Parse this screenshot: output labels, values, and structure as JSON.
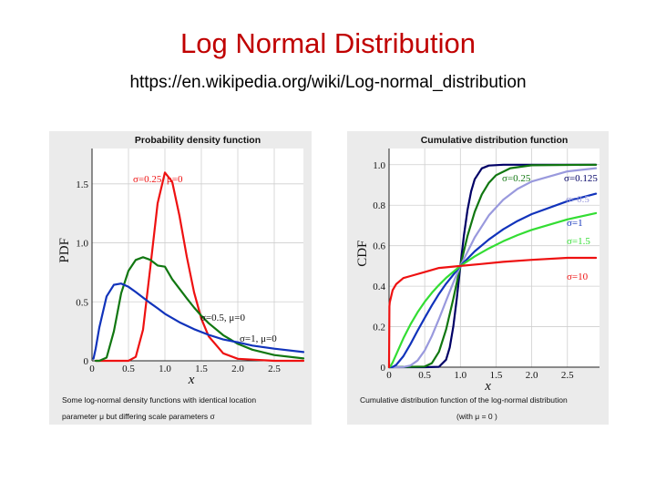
{
  "slide": {
    "title": "Log Normal Distribution",
    "subtitle": "https://en.wikipedia.org/wiki/Log-normal_distribution"
  },
  "chart_data": [
    {
      "type": "line",
      "title": "Probability density function",
      "xlabel": "x",
      "ylabel": "PDF",
      "xlim": [
        0,
        2.9
      ],
      "ylim": [
        0,
        1.8
      ],
      "xticks": [
        "0",
        "0.5",
        "1.0",
        "1.5",
        "2.0",
        "2.5"
      ],
      "yticks": [
        "0",
        "0.5",
        "1.0",
        "1.5"
      ],
      "grid": true,
      "caption_line1": "Some log-normal density functions with identical location",
      "caption_line2": "parameter μ but differing scale parameters σ",
      "series": [
        {
          "label": "σ=0.25, μ=0",
          "color": "#ee1111",
          "x": [
            0.05,
            0.1,
            0.2,
            0.3,
            0.4,
            0.5,
            0.6,
            0.7,
            0.8,
            0.9,
            1.0,
            1.1,
            1.2,
            1.3,
            1.4,
            1.5,
            1.6,
            1.8,
            2.0,
            2.5,
            2.9
          ],
          "y": [
            0.0,
            0.0,
            0.0,
            0.0,
            0.0,
            0.0,
            0.033,
            0.264,
            0.793,
            1.336,
            1.596,
            1.518,
            1.228,
            0.883,
            0.581,
            0.357,
            0.208,
            0.063,
            0.017,
            0.0,
            0.0
          ]
        },
        {
          "label": "σ=0.5, μ=0",
          "color": "#117711",
          "x": [
            0.05,
            0.1,
            0.2,
            0.3,
            0.4,
            0.5,
            0.6,
            0.7,
            0.8,
            0.9,
            1.0,
            1.1,
            1.2,
            1.3,
            1.4,
            1.5,
            1.6,
            1.8,
            2.0,
            2.2,
            2.5,
            2.9
          ],
          "y": [
            0.0,
            0.0,
            0.027,
            0.25,
            0.573,
            0.763,
            0.855,
            0.878,
            0.856,
            0.808,
            0.798,
            0.692,
            0.611,
            0.53,
            0.452,
            0.382,
            0.319,
            0.217,
            0.144,
            0.094,
            0.049,
            0.02
          ]
        },
        {
          "label": "σ=1, μ=0",
          "color": "#1133bb",
          "x": [
            0.02,
            0.05,
            0.1,
            0.2,
            0.3,
            0.4,
            0.5,
            0.6,
            0.7,
            0.8,
            0.9,
            1.0,
            1.2,
            1.4,
            1.6,
            1.8,
            2.0,
            2.2,
            2.5,
            2.9
          ],
          "y": [
            0.018,
            0.103,
            0.282,
            0.546,
            0.644,
            0.655,
            0.627,
            0.583,
            0.536,
            0.489,
            0.445,
            0.399,
            0.327,
            0.268,
            0.22,
            0.181,
            0.157,
            0.129,
            0.103,
            0.074
          ]
        }
      ]
    },
    {
      "type": "line",
      "title": "Cumulative distribution function",
      "xlabel": "x",
      "ylabel": "CDF",
      "xlim": [
        0,
        2.95
      ],
      "ylim": [
        0,
        1.08
      ],
      "xticks": [
        "0",
        "0.5",
        "1.0",
        "1.5",
        "2.0",
        "2.5"
      ],
      "yticks": [
        "0",
        "0.2",
        "0.4",
        "0.6",
        "0.8",
        "1.0"
      ],
      "grid": true,
      "caption_line1": "Cumulative distribution function of the log-normal distribution",
      "caption_line2": "(with μ = 0 )",
      "series": [
        {
          "label": "σ=0.125",
          "color": "#000066",
          "x": [
            0.0,
            0.5,
            0.7,
            0.8,
            0.85,
            0.9,
            0.95,
            1.0,
            1.05,
            1.1,
            1.15,
            1.2,
            1.3,
            1.4,
            1.6,
            2.0,
            2.9
          ],
          "y": [
            0.0,
            0.0,
            0.002,
            0.037,
            0.097,
            0.2,
            0.34,
            0.5,
            0.651,
            0.776,
            0.868,
            0.928,
            0.982,
            0.996,
            1.0,
            1.0,
            1.0
          ]
        },
        {
          "label": "σ=0.25",
          "color": "#117711",
          "x": [
            0.0,
            0.5,
            0.6,
            0.7,
            0.8,
            0.9,
            1.0,
            1.1,
            1.2,
            1.3,
            1.4,
            1.5,
            1.7,
            2.0,
            2.9
          ],
          "y": [
            0.0,
            0.003,
            0.02,
            0.076,
            0.186,
            0.337,
            0.5,
            0.648,
            0.767,
            0.853,
            0.911,
            0.948,
            0.983,
            0.997,
            1.0
          ]
        },
        {
          "label": "σ=0.5",
          "color": "#9999dd",
          "x": [
            0.0,
            0.2,
            0.3,
            0.4,
            0.5,
            0.6,
            0.7,
            0.8,
            0.9,
            1.0,
            1.2,
            1.4,
            1.6,
            1.8,
            2.0,
            2.5,
            2.9
          ],
          "y": [
            0.0,
            0.001,
            0.008,
            0.033,
            0.083,
            0.154,
            0.238,
            0.328,
            0.417,
            0.5,
            0.641,
            0.75,
            0.827,
            0.88,
            0.917,
            0.967,
            0.983
          ]
        },
        {
          "label": "σ=1",
          "color": "#1133bb",
          "x": [
            0.0,
            0.05,
            0.1,
            0.2,
            0.3,
            0.4,
            0.5,
            0.6,
            0.7,
            0.8,
            1.0,
            1.2,
            1.4,
            1.6,
            1.8,
            2.0,
            2.5,
            2.9
          ],
          "y": [
            0.0,
            0.001,
            0.011,
            0.054,
            0.114,
            0.18,
            0.244,
            0.305,
            0.362,
            0.412,
            0.5,
            0.572,
            0.631,
            0.681,
            0.722,
            0.756,
            0.82,
            0.857
          ]
        },
        {
          "label": "σ=1.5",
          "color": "#33dd33",
          "x": [
            0.0,
            0.02,
            0.05,
            0.1,
            0.2,
            0.3,
            0.4,
            0.5,
            0.6,
            0.7,
            0.8,
            1.0,
            1.2,
            1.4,
            1.6,
            1.8,
            2.0,
            2.5,
            2.9
          ],
          "y": [
            0.0,
            0.005,
            0.023,
            0.062,
            0.142,
            0.211,
            0.271,
            0.323,
            0.367,
            0.406,
            0.441,
            0.5,
            0.547,
            0.587,
            0.622,
            0.652,
            0.678,
            0.73,
            0.761
          ]
        },
        {
          "label": "σ=10",
          "color": "#ee1111",
          "x": [
            0.0,
            0.005,
            0.01,
            0.05,
            0.1,
            0.2,
            0.3,
            0.5,
            0.7,
            1.0,
            1.3,
            1.6,
            2.0,
            2.5,
            2.9
          ],
          "y": [
            0.0,
            0.3,
            0.32,
            0.38,
            0.41,
            0.44,
            0.45,
            0.47,
            0.49,
            0.5,
            0.51,
            0.52,
            0.53,
            0.54,
            0.54
          ]
        }
      ]
    }
  ]
}
